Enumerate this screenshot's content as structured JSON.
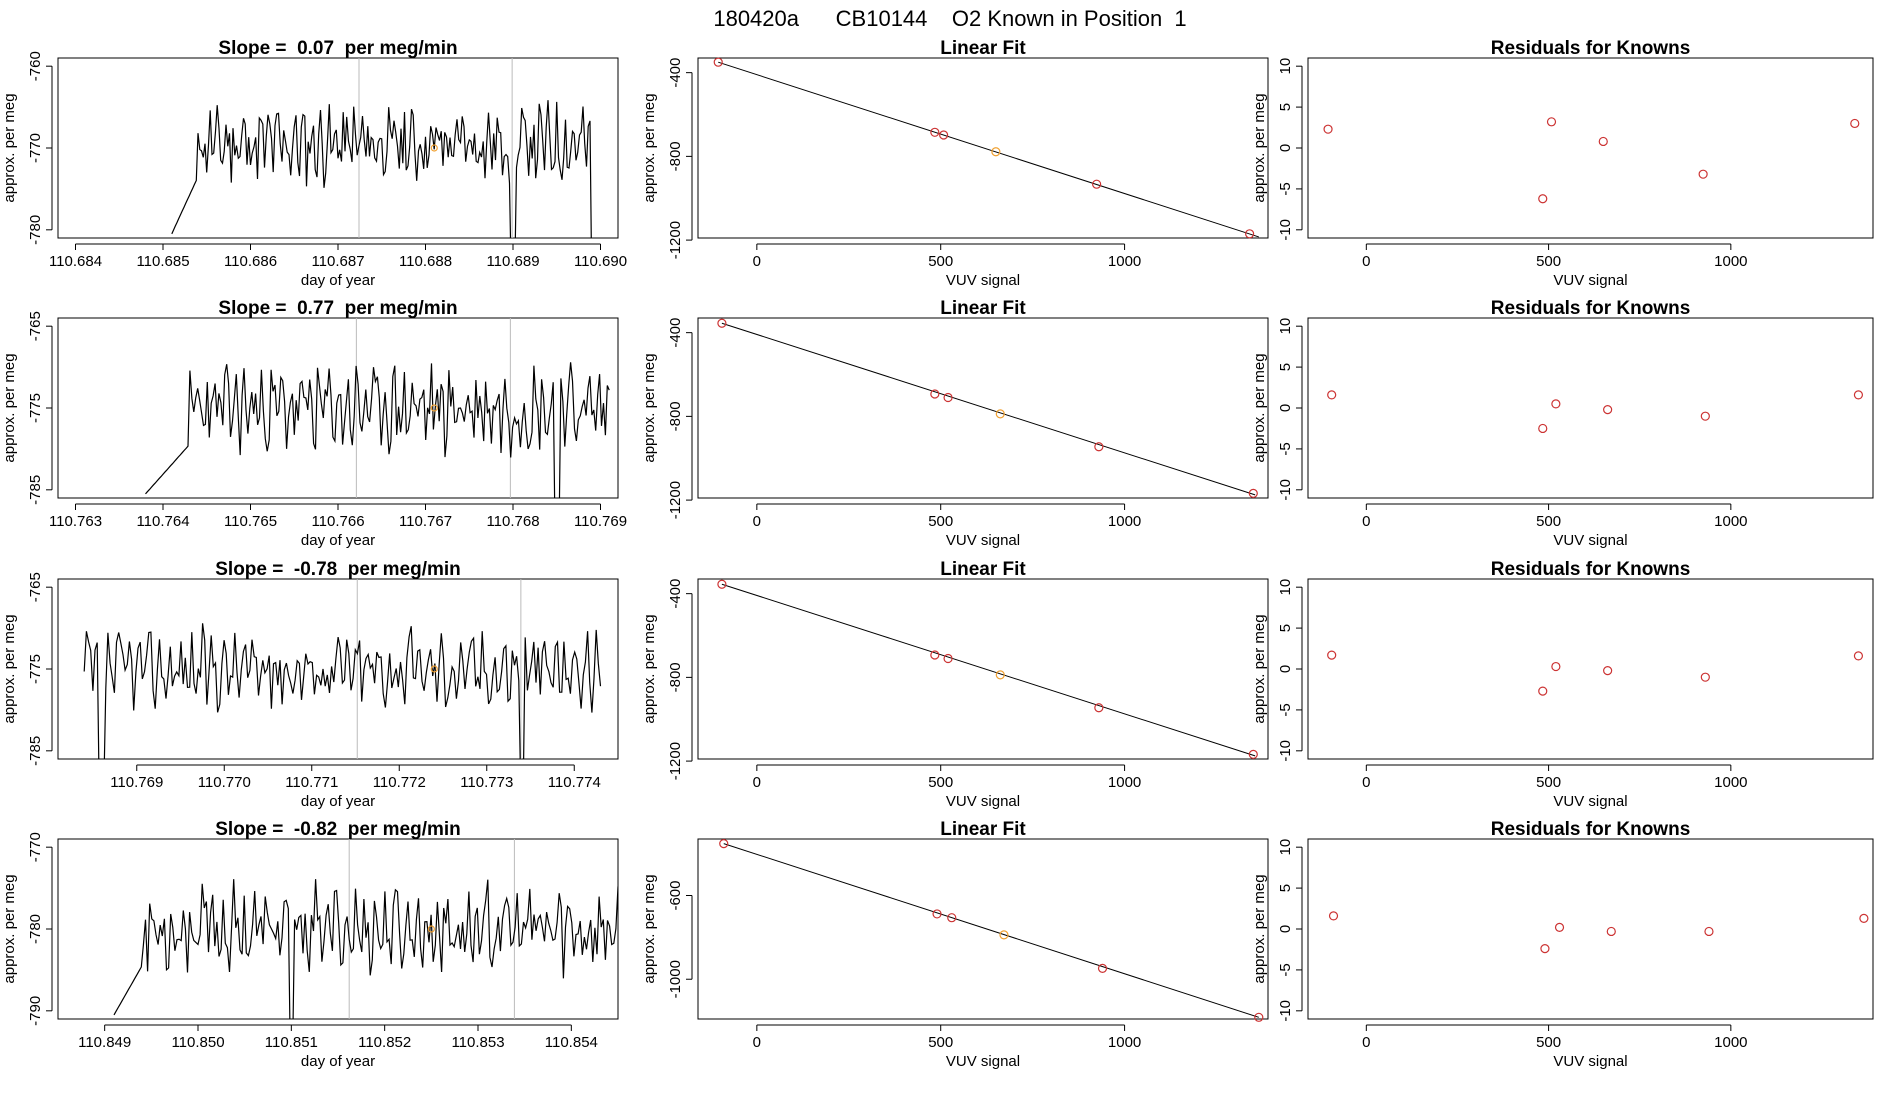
{
  "figure_title": "180420a      CB10144    O2 Known in Position  1",
  "labels": {
    "approx": "approx. per meg",
    "doy": "day of year",
    "vuv": "VUV signal",
    "linear_fit": "Linear Fit",
    "residuals": "Residuals for Knowns"
  },
  "colors": {
    "line": "#000000",
    "known": "#cc3333",
    "highlight": "#f0a030",
    "vline": "#bbbbbb"
  },
  "chart_data": [
    {
      "type": "line",
      "panel": "time-1",
      "title": "Slope =  0.07  per meg/min",
      "xlabel": "day of year",
      "ylabel": "approx. per meg",
      "xlim": [
        110.6838,
        110.6902
      ],
      "ylim": [
        -781,
        -759
      ],
      "xticks": [
        110.684,
        110.685,
        110.686,
        110.687,
        110.688,
        110.689,
        110.69
      ],
      "xtick_labels": [
        "110.684",
        "110.685",
        "110.686",
        "110.687",
        "110.688",
        "110.689",
        "110.690"
      ],
      "yticks": [
        -780,
        -770,
        -760
      ],
      "ytick_labels": [
        "-780",
        "-770",
        "-760"
      ],
      "start": 110.6851,
      "end": 110.6899,
      "level": -769.5,
      "amp": 4.5,
      "seed": 11,
      "rise_x": 110.6854,
      "vlines": [
        110.68724,
        110.68899
      ],
      "dropouts": [
        110.689
      ],
      "highlight": [
        110.6881,
        -770
      ]
    },
    {
      "type": "scatter",
      "panel": "fit-1",
      "title": "Linear Fit",
      "xlabel": "VUV signal",
      "ylabel": "approx. per meg",
      "xlim": [
        -160,
        1390
      ],
      "ylim": [
        -1190,
        -330
      ],
      "xticks": [
        0,
        500,
        1000
      ],
      "xtick_labels": [
        "0",
        "500",
        "1000"
      ],
      "yticks": [
        -1200,
        -800,
        -400
      ],
      "ytick_labels": [
        "-1200",
        "-800",
        "-400"
      ],
      "line": [
        [
          -105,
          -350
        ],
        [
          1365,
          -1185
        ]
      ],
      "points": [
        [
          -105,
          -350
        ],
        [
          484,
          -685
        ],
        [
          508,
          -698
        ],
        [
          650,
          -778
        ],
        [
          924,
          -933
        ],
        [
          1340,
          -1170
        ]
      ],
      "highlight_index": 3
    },
    {
      "type": "scatter",
      "panel": "resid-1",
      "title": "Residuals for Knowns",
      "xlabel": "VUV signal",
      "ylabel": "approx. per meg",
      "xlim": [
        -160,
        1390
      ],
      "ylim": [
        -11,
        11
      ],
      "xticks": [
        0,
        500,
        1000
      ],
      "xtick_labels": [
        "0",
        "500",
        "1000"
      ],
      "yticks": [
        -10,
        -5,
        0,
        5,
        10
      ],
      "ytick_labels": [
        "-10",
        "-5",
        "0",
        "5",
        "10"
      ],
      "points": [
        [
          -105,
          2.3
        ],
        [
          484,
          -6.2
        ],
        [
          508,
          3.2
        ],
        [
          650,
          0.8
        ],
        [
          924,
          -3.2
        ],
        [
          1340,
          3.0
        ]
      ]
    },
    {
      "type": "line",
      "panel": "time-2",
      "title": "Slope =  0.77  per meg/min",
      "xlabel": "day of year",
      "ylabel": "approx. per meg",
      "xlim": [
        110.7628,
        110.7692
      ],
      "ylim": [
        -786,
        -764
      ],
      "xticks": [
        110.763,
        110.764,
        110.765,
        110.766,
        110.767,
        110.768,
        110.769
      ],
      "xtick_labels": [
        "110.763",
        "110.764",
        "110.765",
        "110.766",
        "110.767",
        "110.768",
        "110.769"
      ],
      "yticks": [
        -785,
        -775,
        -765
      ],
      "ytick_labels": [
        "-785",
        "-775",
        "-765"
      ],
      "start": 110.7638,
      "end": 110.7691,
      "level": -775,
      "amp": 5,
      "seed": 23,
      "rise_x": 110.7643,
      "vlines": [
        110.76621,
        110.76797
      ],
      "dropouts": [
        110.7685
      ],
      "highlight": [
        110.7671,
        -775
      ]
    },
    {
      "type": "scatter",
      "panel": "fit-2",
      "title": "Linear Fit",
      "xlabel": "VUV signal",
      "ylabel": "approx. per meg",
      "xlim": [
        -160,
        1390
      ],
      "ylim": [
        -1190,
        -330
      ],
      "xticks": [
        0,
        500,
        1000
      ],
      "xtick_labels": [
        "0",
        "500",
        "1000"
      ],
      "yticks": [
        -1200,
        -800,
        -400
      ],
      "ytick_labels": [
        "-1200",
        "-800",
        "-400"
      ],
      "line": [
        [
          -95,
          -355
        ],
        [
          1355,
          -1175
        ]
      ],
      "points": [
        [
          -95,
          -355
        ],
        [
          484,
          -693
        ],
        [
          520,
          -710
        ],
        [
          662,
          -788
        ],
        [
          930,
          -945
        ],
        [
          1350,
          -1168
        ]
      ],
      "highlight_index": 3
    },
    {
      "type": "scatter",
      "panel": "resid-2",
      "title": "Residuals for Knowns",
      "xlabel": "VUV signal",
      "ylabel": "approx. per meg",
      "xlim": [
        -160,
        1390
      ],
      "ylim": [
        -11,
        11
      ],
      "xticks": [
        0,
        500,
        1000
      ],
      "xtick_labels": [
        "0",
        "500",
        "1000"
      ],
      "yticks": [
        -10,
        -5,
        0,
        5,
        10
      ],
      "ytick_labels": [
        "-10",
        "-5",
        "0",
        "5",
        "10"
      ],
      "points": [
        [
          -95,
          1.6
        ],
        [
          484,
          -2.5
        ],
        [
          520,
          0.5
        ],
        [
          662,
          -0.2
        ],
        [
          930,
          -1.0
        ],
        [
          1350,
          1.6
        ]
      ]
    },
    {
      "type": "line",
      "panel": "time-3",
      "title": "Slope =  -0.78  per meg/min",
      "xlabel": "day of year",
      "ylabel": "approx. per meg",
      "xlim": [
        110.7681,
        110.7745
      ],
      "ylim": [
        -786,
        -764
      ],
      "xticks": [
        110.769,
        110.77,
        110.771,
        110.772,
        110.773,
        110.774
      ],
      "xtick_labels": [
        "110.769",
        "110.770",
        "110.771",
        "110.772",
        "110.773",
        "110.774"
      ],
      "yticks": [
        -785,
        -775,
        -765
      ],
      "ytick_labels": [
        "-785",
        "-775",
        "-765"
      ],
      "start": 110.7684,
      "end": 110.7743,
      "level": -775,
      "amp": 4.5,
      "seed": 37,
      "rise_x": 110.7684,
      "vlines": [
        110.77152,
        110.77339
      ],
      "dropouts": [
        110.7686,
        110.7734
      ],
      "highlight": [
        110.7724,
        -775
      ]
    },
    {
      "type": "scatter",
      "panel": "fit-3",
      "title": "Linear Fit",
      "xlabel": "VUV signal",
      "ylabel": "approx. per meg",
      "xlim": [
        -160,
        1390
      ],
      "ylim": [
        -1190,
        -330
      ],
      "xticks": [
        0,
        500,
        1000
      ],
      "xtick_labels": [
        "0",
        "500",
        "1000"
      ],
      "yticks": [
        -1200,
        -800,
        -400
      ],
      "ytick_labels": [
        "-1200",
        "-800",
        "-400"
      ],
      "line": [
        [
          -95,
          -355
        ],
        [
          1355,
          -1175
        ]
      ],
      "points": [
        [
          -95,
          -355
        ],
        [
          484,
          -693
        ],
        [
          520,
          -710
        ],
        [
          662,
          -788
        ],
        [
          930,
          -945
        ],
        [
          1350,
          -1168
        ]
      ],
      "highlight_index": 3
    },
    {
      "type": "scatter",
      "panel": "resid-3",
      "title": "Residuals for Knowns",
      "xlabel": "VUV signal",
      "ylabel": "approx. per meg",
      "xlim": [
        -160,
        1390
      ],
      "ylim": [
        -11,
        11
      ],
      "xticks": [
        0,
        500,
        1000
      ],
      "xtick_labels": [
        "0",
        "500",
        "1000"
      ],
      "yticks": [
        -10,
        -5,
        0,
        5,
        10
      ],
      "ytick_labels": [
        "-10",
        "-5",
        "0",
        "5",
        "10"
      ],
      "points": [
        [
          -95,
          1.7
        ],
        [
          484,
          -2.7
        ],
        [
          520,
          0.3
        ],
        [
          662,
          -0.2
        ],
        [
          930,
          -1.0
        ],
        [
          1350,
          1.6
        ]
      ]
    },
    {
      "type": "line",
      "panel": "time-4",
      "title": "Slope =  -0.82  per meg/min",
      "xlabel": "day of year",
      "ylabel": "approx. per meg",
      "xlim": [
        110.8485,
        110.8545
      ],
      "ylim": [
        -791,
        -769
      ],
      "xticks": [
        110.849,
        110.85,
        110.851,
        110.852,
        110.853,
        110.854
      ],
      "xtick_labels": [
        "110.849",
        "110.850",
        "110.851",
        "110.852",
        "110.853",
        "110.854"
      ],
      "yticks": [
        -790,
        -780,
        -770
      ],
      "ytick_labels": [
        "-790",
        "-780",
        "-770"
      ],
      "start": 110.8491,
      "end": 110.8545,
      "level": -780,
      "amp": 5,
      "seed": 53,
      "rise_x": 110.8494,
      "vlines": [
        110.85162,
        110.85339
      ],
      "dropouts": [
        110.851
      ],
      "highlight": [
        110.8525,
        -780
      ]
    },
    {
      "type": "scatter",
      "panel": "fit-4",
      "title": "Linear Fit",
      "xlabel": "VUV signal",
      "ylabel": "approx. per meg",
      "xlim": [
        -160,
        1390
      ],
      "ylim": [
        -1190,
        -330
      ],
      "xticks": [
        0,
        500,
        1000
      ],
      "xtick_labels": [
        "0",
        "500",
        "1000"
      ],
      "yticks": [
        -1000,
        -600
      ],
      "ytick_labels": [
        "-1000",
        "-600"
      ],
      "line": [
        [
          -90,
          -352
        ],
        [
          1365,
          -1182
        ]
      ],
      "points": [
        [
          -90,
          -352
        ],
        [
          490,
          -688
        ],
        [
          530,
          -706
        ],
        [
          672,
          -788
        ],
        [
          940,
          -948
        ],
        [
          1365,
          -1182
        ]
      ],
      "highlight_index": 3
    },
    {
      "type": "scatter",
      "panel": "resid-4",
      "title": "Residuals for Knowns",
      "xlabel": "VUV signal",
      "ylabel": "approx. per meg",
      "xlim": [
        -160,
        1390
      ],
      "ylim": [
        -11,
        11
      ],
      "xticks": [
        0,
        500,
        1000
      ],
      "xtick_labels": [
        "0",
        "500",
        "1000"
      ],
      "yticks": [
        -10,
        -5,
        0,
        5,
        10
      ],
      "ytick_labels": [
        "-10",
        "-5",
        "0",
        "5",
        "10"
      ],
      "points": [
        [
          -90,
          1.6
        ],
        [
          490,
          -2.4
        ],
        [
          530,
          0.2
        ],
        [
          672,
          -0.3
        ],
        [
          940,
          -0.3
        ],
        [
          1365,
          1.3
        ]
      ]
    }
  ]
}
